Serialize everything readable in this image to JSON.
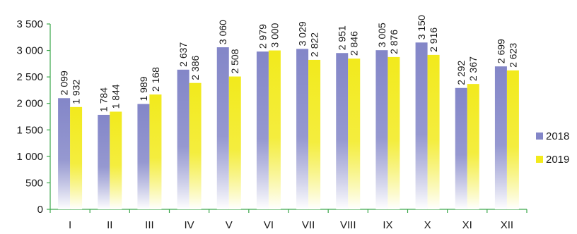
{
  "chart_data": {
    "type": "bar",
    "categories": [
      "I",
      "II",
      "III",
      "IV",
      "V",
      "VI",
      "VII",
      "VIII",
      "IX",
      "X",
      "XI",
      "XII"
    ],
    "series": [
      {
        "name": "2018",
        "values": [
          2099,
          1784,
          1989,
          2637,
          3060,
          2979,
          3029,
          2951,
          3005,
          3150,
          2292,
          2699
        ],
        "labels": [
          "2 099",
          "1 784",
          "1 989",
          "2 637",
          "3 060",
          "2 979",
          "3 029",
          "2 951",
          "3 005",
          "3 150",
          "2 292",
          "2 699"
        ],
        "color": "#8386c8"
      },
      {
        "name": "2019",
        "values": [
          1932,
          1844,
          2168,
          2386,
          2508,
          3000,
          2822,
          2846,
          2876,
          2916,
          2367,
          2623
        ],
        "labels": [
          "1 932",
          "1 844",
          "2 168",
          "2 386",
          "2 508",
          "3 000",
          "2 822",
          "2 846",
          "2 876",
          "2 916",
          "2 367",
          "2 623"
        ],
        "color": "#f2ea1c"
      }
    ],
    "ylim": [
      0,
      3500
    ],
    "yticks": [
      0,
      500,
      1000,
      1500,
      2000,
      2500,
      3000,
      3500
    ],
    "ytick_labels": [
      "0",
      "500",
      "1 000",
      "1 500",
      "2 000",
      "2 500",
      "3 000",
      "3 500"
    ],
    "axis_color": "#3aa64a",
    "grid": false,
    "legend_position": "right",
    "bar_style": "vertical gradient fading to white at base",
    "title": "",
    "xlabel": "",
    "ylabel": ""
  }
}
